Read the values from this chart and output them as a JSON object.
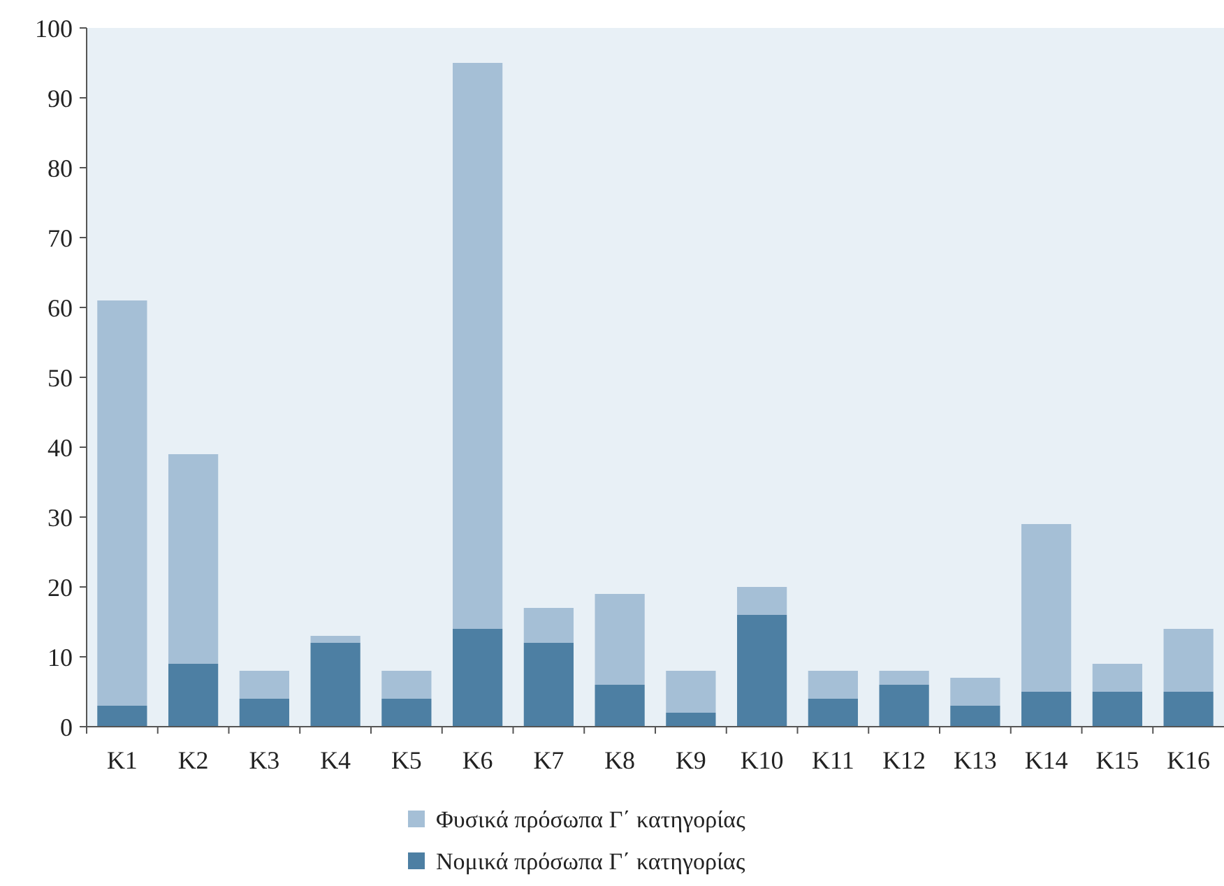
{
  "chart_data": {
    "type": "bar",
    "stacked": true,
    "categories": [
      "K1",
      "K2",
      "K3",
      "K4",
      "K5",
      "K6",
      "K7",
      "K8",
      "K9",
      "K10",
      "K11",
      "K12",
      "K13",
      "K14",
      "K15",
      "K16"
    ],
    "series": [
      {
        "name": "Νομικά πρόσωπα Γ΄ κατηγορίας",
        "color": "#4d7fa3",
        "values": [
          3,
          9,
          4,
          12,
          4,
          14,
          12,
          6,
          2,
          16,
          4,
          6,
          3,
          5,
          5,
          5
        ]
      },
      {
        "name": "Φυσικά πρόσωπα Γ΄ κατηγορίας",
        "color": "#a5bfd6",
        "values": [
          58,
          30,
          4,
          1,
          4,
          81,
          5,
          13,
          6,
          4,
          4,
          2,
          4,
          24,
          4,
          9
        ]
      }
    ],
    "ylim": [
      0,
      100
    ],
    "yticks": [
      0,
      10,
      20,
      30,
      40,
      50,
      60,
      70,
      80,
      90,
      100
    ],
    "grid": false,
    "legend": "bottom"
  }
}
